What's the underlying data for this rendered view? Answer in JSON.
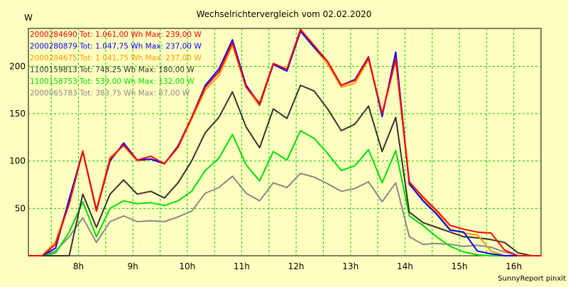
{
  "chart_data": {
    "type": "line",
    "title": "Wechselrichtervergleich vom 02.02.2020",
    "ylabel": "W",
    "footer": "SunnyReport pinxit",
    "xlim": [
      7.08,
      16.5
    ],
    "ylim": [
      0,
      240
    ],
    "x_ticks": [
      {
        "v": 8,
        "label": "8h"
      },
      {
        "v": 9,
        "label": "9h"
      },
      {
        "v": 10,
        "label": "10h"
      },
      {
        "v": 11,
        "label": "11h"
      },
      {
        "v": 12,
        "label": "12h"
      },
      {
        "v": 13,
        "label": "13h"
      },
      {
        "v": 14,
        "label": "14h"
      },
      {
        "v": 15,
        "label": "15h"
      },
      {
        "v": 16,
        "label": "16h"
      }
    ],
    "y_ticks": [
      50,
      100,
      150,
      200
    ],
    "grid": true,
    "legend_position": "top-left",
    "x": [
      7.08,
      7.33,
      7.58,
      7.83,
      8.08,
      8.33,
      8.58,
      8.83,
      9.08,
      9.33,
      9.58,
      9.83,
      10.08,
      10.33,
      10.58,
      10.83,
      11.08,
      11.33,
      11.58,
      11.83,
      12.08,
      12.33,
      12.58,
      12.83,
      13.08,
      13.33,
      13.58,
      13.83,
      14.08,
      14.33,
      14.58,
      14.83,
      15.08,
      15.33,
      15.58,
      15.83,
      16.08,
      16.33,
      16.5
    ],
    "series": [
      {
        "name": "2000284690",
        "legend": "2000284690 Tot: 1.061,00 Wh Max: 239,00 W",
        "color": "#ff0000",
        "values": [
          0,
          0,
          12,
          55,
          110,
          47,
          102,
          117,
          101,
          105,
          97,
          115,
          146,
          178,
          194,
          225,
          178,
          161,
          203,
          197,
          239,
          222,
          205,
          180,
          185,
          209,
          150,
          208,
          78,
          62,
          48,
          32,
          28,
          25,
          24,
          6,
          0,
          0,
          0
        ]
      },
      {
        "name": "2000280879",
        "legend": "2000280879 Tot: 1.047,75 Wh Max: 237,00 W",
        "color": "#0000ff",
        "values": [
          0,
          0,
          8,
          60,
          110,
          48,
          100,
          119,
          101,
          102,
          97,
          116,
          146,
          180,
          197,
          228,
          180,
          160,
          202,
          195,
          237,
          220,
          205,
          180,
          186,
          210,
          147,
          215,
          76,
          58,
          44,
          27,
          25,
          5,
          2,
          0,
          0,
          0,
          0
        ]
      },
      {
        "name": "2000284675",
        "legend": "2000284675 Tot: 1.041,75 Wh Max: 237,00 W",
        "color": "#ff9900",
        "values": [
          0,
          0,
          15,
          57,
          111,
          49,
          104,
          116,
          100,
          102,
          98,
          114,
          144,
          175,
          190,
          222,
          178,
          158,
          202,
          195,
          237,
          220,
          202,
          178,
          182,
          207,
          149,
          206,
          75,
          60,
          46,
          28,
          24,
          22,
          5,
          0,
          0,
          0,
          0
        ]
      },
      {
        "name": "1100159813",
        "legend": "1100159813 Tot: 748,25 Wh Max: 180,00 W",
        "color": "#333333",
        "values": [
          0,
          0,
          0,
          0,
          65,
          30,
          65,
          80,
          65,
          68,
          61,
          77,
          100,
          130,
          146,
          173,
          136,
          114,
          155,
          145,
          180,
          174,
          155,
          132,
          139,
          158,
          110,
          146,
          46,
          35,
          30,
          25,
          20,
          19,
          17,
          14,
          3,
          0,
          0
        ]
      },
      {
        "name": "1100158753",
        "legend": "1100158753 Tot: 539,00 Wh Max: 132,00 W",
        "color": "#00dd00",
        "values": [
          0,
          0,
          3,
          25,
          57,
          20,
          50,
          58,
          55,
          56,
          53,
          58,
          68,
          90,
          103,
          128,
          96,
          79,
          110,
          101,
          132,
          124,
          108,
          90,
          95,
          112,
          77,
          111,
          42,
          32,
          20,
          10,
          4,
          1,
          0,
          0,
          0,
          0,
          0
        ]
      },
      {
        "name": "2000065783",
        "legend": "2000065783 Tot: 383,75 Wh Max: 87,00 W",
        "color": "#888888",
        "values": [
          0,
          0,
          5,
          20,
          40,
          14,
          36,
          42,
          36,
          37,
          36,
          41,
          47,
          66,
          72,
          84,
          66,
          58,
          77,
          72,
          87,
          83,
          76,
          68,
          71,
          78,
          57,
          77,
          20,
          12,
          13,
          12,
          10,
          11,
          9,
          4,
          0,
          0,
          0
        ]
      }
    ]
  }
}
